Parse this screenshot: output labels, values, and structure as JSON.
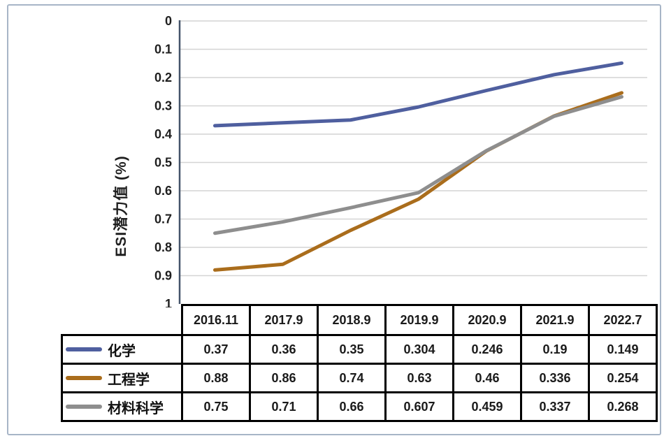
{
  "colors": {
    "frame_border": "#a7b5c7",
    "grid": "#d4d4d4",
    "axis": "#44546a",
    "table_border": "#000000",
    "text": "#1f1f1f",
    "background": "#ffffff"
  },
  "chart_data": {
    "type": "line",
    "title": "",
    "xlabel": "",
    "ylabel": "ESI潜力值 (%)",
    "x_categories": [
      "2016.11",
      "2017.9",
      "2018.9",
      "2019.9",
      "2020.9",
      "2021.9",
      "2022.7"
    ],
    "y_axis": {
      "min": 0,
      "max": 1,
      "step": 0.1,
      "inverted": true,
      "ticks": [
        "0",
        "0.1",
        "0.2",
        "0.3",
        "0.4",
        "0.5",
        "0.6",
        "0.7",
        "0.8",
        "0.9",
        "1"
      ]
    },
    "grid": true,
    "legend_position": "table-left",
    "series": [
      {
        "name": "化学",
        "color": "#4f5f9f",
        "values": [
          0.37,
          0.36,
          0.35,
          0.304,
          0.246,
          0.19,
          0.149
        ]
      },
      {
        "name": "工程学",
        "color": "#aa6d1c",
        "values": [
          0.88,
          0.86,
          0.74,
          0.63,
          0.46,
          0.336,
          0.254
        ]
      },
      {
        "name": "材料科学",
        "color": "#8e8e8e",
        "values": [
          0.75,
          0.71,
          0.66,
          0.607,
          0.459,
          0.337,
          0.268
        ]
      }
    ]
  },
  "table": {
    "col_headers": [
      "2016.11",
      "2017.9",
      "2018.9",
      "2019.9",
      "2020.9",
      "2021.9",
      "2022.7"
    ],
    "rows": [
      {
        "label": "化学",
        "values": [
          "0.37",
          "0.36",
          "0.35",
          "0.304",
          "0.246",
          "0.19",
          "0.149"
        ]
      },
      {
        "label": "工程学",
        "values": [
          "0.88",
          "0.86",
          "0.74",
          "0.63",
          "0.46",
          "0.336",
          "0.254"
        ]
      },
      {
        "label": "材料科学",
        "values": [
          "0.75",
          "0.71",
          "0.66",
          "0.607",
          "0.459",
          "0.337",
          "0.268"
        ]
      }
    ]
  }
}
